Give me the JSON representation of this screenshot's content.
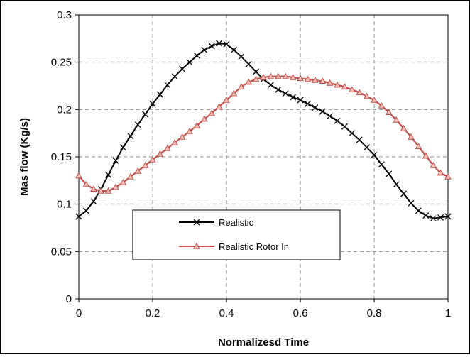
{
  "chart_data": {
    "type": "line",
    "title": "",
    "xlabel": "Normalizesd Time",
    "ylabel": "Mas flow (Kg/s)",
    "xlim": [
      0,
      1
    ],
    "ylim": [
      0,
      0.3
    ],
    "x_ticks": [
      "0",
      "0.2",
      "0.4",
      "0.6",
      "0.8",
      "1"
    ],
    "y_ticks": [
      "0",
      "0.05",
      "0.1",
      "0.15",
      "0.2",
      "0.25",
      "0.3"
    ],
    "grid": true,
    "legend_position": "lower-left",
    "series": [
      {
        "name": "Realistic",
        "color": "#000000",
        "marker": "x",
        "x": [
          0,
          0.02,
          0.04,
          0.06,
          0.08,
          0.1,
          0.12,
          0.14,
          0.16,
          0.18,
          0.2,
          0.22,
          0.24,
          0.26,
          0.28,
          0.3,
          0.32,
          0.34,
          0.36,
          0.38,
          0.4,
          0.42,
          0.44,
          0.46,
          0.48,
          0.5,
          0.52,
          0.54,
          0.56,
          0.58,
          0.6,
          0.62,
          0.64,
          0.66,
          0.68,
          0.7,
          0.72,
          0.74,
          0.76,
          0.78,
          0.8,
          0.82,
          0.84,
          0.86,
          0.88,
          0.9,
          0.92,
          0.94,
          0.96,
          0.98,
          1.0
        ],
        "y": [
          0.087,
          0.093,
          0.103,
          0.116,
          0.131,
          0.146,
          0.16,
          0.172,
          0.184,
          0.195,
          0.206,
          0.216,
          0.226,
          0.235,
          0.243,
          0.25,
          0.257,
          0.263,
          0.267,
          0.27,
          0.269,
          0.263,
          0.256,
          0.248,
          0.24,
          0.232,
          0.226,
          0.221,
          0.217,
          0.213,
          0.21,
          0.206,
          0.202,
          0.198,
          0.193,
          0.188,
          0.182,
          0.175,
          0.168,
          0.16,
          0.152,
          0.142,
          0.132,
          0.121,
          0.111,
          0.101,
          0.093,
          0.088,
          0.085,
          0.086,
          0.087
        ]
      },
      {
        "name": "Realistic Rotor In",
        "color": "#c0504d",
        "marker": "triangle",
        "x": [
          0,
          0.02,
          0.04,
          0.06,
          0.08,
          0.1,
          0.12,
          0.14,
          0.16,
          0.18,
          0.2,
          0.22,
          0.24,
          0.26,
          0.28,
          0.3,
          0.32,
          0.34,
          0.36,
          0.38,
          0.4,
          0.42,
          0.44,
          0.46,
          0.48,
          0.5,
          0.52,
          0.54,
          0.56,
          0.58,
          0.6,
          0.62,
          0.64,
          0.66,
          0.68,
          0.7,
          0.72,
          0.74,
          0.76,
          0.78,
          0.8,
          0.82,
          0.84,
          0.86,
          0.88,
          0.9,
          0.92,
          0.94,
          0.96,
          0.98,
          1.0
        ],
        "y": [
          0.13,
          0.121,
          0.116,
          0.114,
          0.114,
          0.118,
          0.123,
          0.129,
          0.135,
          0.141,
          0.147,
          0.153,
          0.159,
          0.165,
          0.171,
          0.177,
          0.183,
          0.19,
          0.196,
          0.203,
          0.21,
          0.217,
          0.224,
          0.229,
          0.232,
          0.234,
          0.235,
          0.235,
          0.235,
          0.234,
          0.233,
          0.232,
          0.231,
          0.23,
          0.228,
          0.226,
          0.224,
          0.221,
          0.218,
          0.214,
          0.21,
          0.204,
          0.197,
          0.189,
          0.18,
          0.171,
          0.161,
          0.151,
          0.141,
          0.133,
          0.129
        ]
      }
    ]
  }
}
